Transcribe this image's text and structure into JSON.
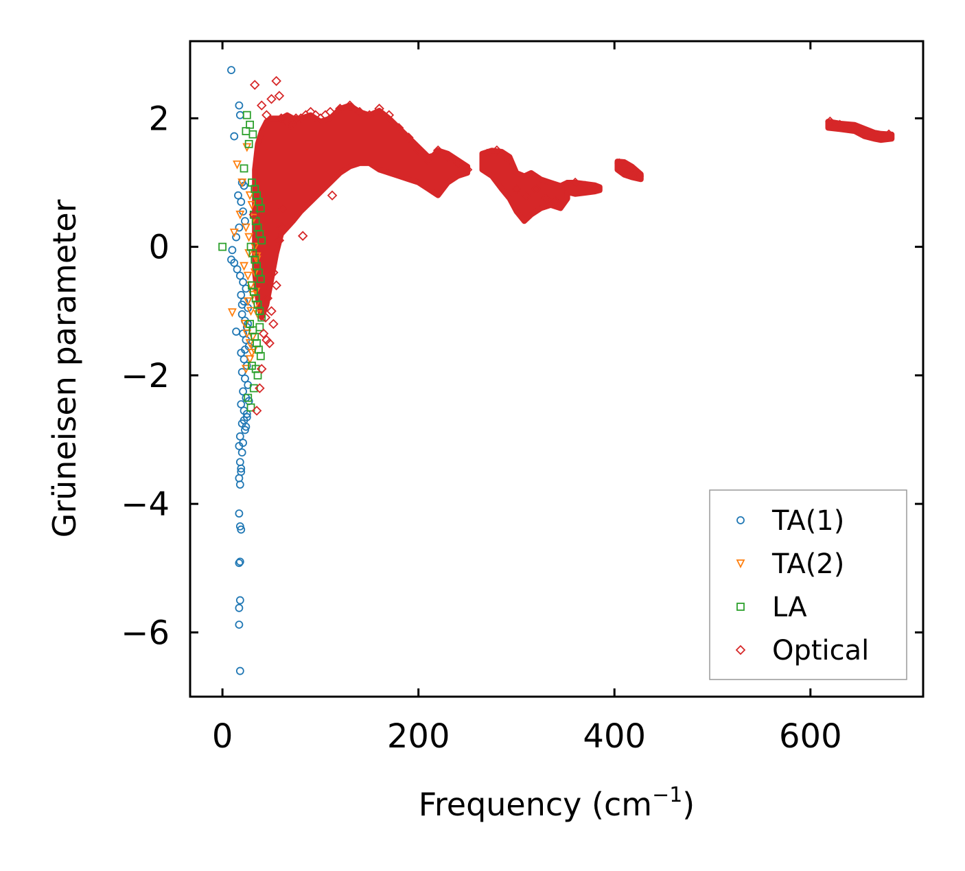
{
  "chart_data": {
    "type": "scatter",
    "title": "",
    "xlabel": "Frequency (cm",
    "xlabel_sup": "−1",
    "xlabel_end": ")",
    "ylabel": "Grüneisen parameter",
    "xlim": [
      -33,
      715
    ],
    "ylim": [
      -7.0,
      3.2
    ],
    "xticks": [
      0,
      200,
      400,
      600
    ],
    "xtick_labels": [
      "0",
      "200",
      "400",
      "600"
    ],
    "yticks": [
      2,
      0,
      -2,
      -4,
      -6
    ],
    "ytick_labels": [
      "2",
      "0",
      "−2",
      "−4",
      "−6"
    ],
    "grid": false,
    "legend_position": "lower-right",
    "series": [
      {
        "name": "TA(1)",
        "color": "#1f77b4",
        "marker": "circle",
        "x": [
          9,
          17,
          12,
          18,
          20,
          22,
          16,
          19,
          21,
          23,
          17,
          14,
          10,
          9,
          12,
          15,
          18,
          21,
          24,
          19,
          22,
          26,
          20,
          23,
          25,
          21,
          24,
          27,
          19,
          22,
          25,
          20,
          23,
          26,
          21,
          24,
          19,
          22,
          25,
          20,
          23,
          18,
          21,
          24,
          17,
          20,
          18,
          19,
          17,
          18,
          19,
          17,
          18,
          19,
          18,
          17,
          18,
          17,
          17,
          18,
          22,
          25,
          27,
          23,
          26,
          20,
          14
        ],
        "y": [
          2.75,
          2.2,
          1.72,
          2.05,
          1.0,
          0.95,
          0.8,
          0.7,
          0.55,
          0.4,
          0.3,
          0.15,
          -0.05,
          -0.2,
          -0.25,
          -0.35,
          -0.45,
          -0.55,
          -0.65,
          -0.75,
          -0.85,
          -0.95,
          -1.05,
          -1.15,
          -1.25,
          -1.35,
          -1.45,
          -1.55,
          -1.65,
          -1.75,
          -1.85,
          -1.95,
          -2.05,
          -2.15,
          -2.25,
          -2.35,
          -2.45,
          -2.55,
          -2.65,
          -2.75,
          -2.85,
          -2.95,
          -3.05,
          -2.8,
          -3.1,
          -3.2,
          -3.35,
          -3.5,
          -3.6,
          -3.7,
          -3.45,
          -4.15,
          -4.35,
          -4.4,
          -4.9,
          -4.92,
          -5.5,
          -5.62,
          -5.88,
          -6.6,
          -2.7,
          -2.6,
          -2.4,
          -1.6,
          -1.2,
          -0.9,
          -1.32
        ]
      },
      {
        "name": "TA(2)",
        "color": "#ff7f0e",
        "marker": "triangle-down",
        "x": [
          25,
          15,
          20,
          12,
          18,
          28,
          30,
          32,
          24,
          27,
          33,
          35,
          22,
          26,
          29,
          31,
          34,
          36,
          23,
          25,
          28,
          30,
          33,
          35,
          26,
          29,
          31,
          34,
          28,
          32,
          10,
          24,
          27
        ],
        "y": [
          1.55,
          1.28,
          1.0,
          0.22,
          0.5,
          0.8,
          0.65,
          0.45,
          0.3,
          0.15,
          0.0,
          -0.15,
          -0.3,
          -0.45,
          -0.6,
          -0.75,
          -0.9,
          -1.05,
          -1.2,
          -1.35,
          -1.5,
          -1.65,
          -0.4,
          -0.2,
          -0.85,
          -1.0,
          -1.4,
          -0.7,
          -1.75,
          -1.6,
          -1.02,
          -1.9,
          -0.1
        ]
      },
      {
        "name": "LA",
        "color": "#2ca02c",
        "marker": "square",
        "x": [
          25,
          28,
          31,
          24,
          27,
          22,
          30,
          33,
          35,
          37,
          39,
          32,
          34,
          36,
          38,
          40,
          29,
          31,
          33,
          35,
          37,
          39,
          30,
          32,
          34,
          36,
          38,
          40,
          28,
          31,
          33,
          35,
          37,
          39,
          30,
          34,
          38,
          36,
          32,
          26,
          29,
          0
        ],
        "y": [
          2.05,
          1.9,
          1.75,
          1.8,
          1.6,
          1.22,
          1.0,
          0.9,
          0.8,
          0.7,
          0.6,
          0.5,
          0.4,
          0.3,
          0.2,
          0.1,
          0.0,
          -0.1,
          -0.2,
          -0.3,
          -0.4,
          -0.5,
          -0.6,
          -0.7,
          -0.8,
          -0.9,
          -1.0,
          -1.1,
          -1.2,
          -1.3,
          -1.4,
          -1.5,
          -1.6,
          -1.7,
          -1.85,
          -1.9,
          -1.25,
          -2.0,
          -2.2,
          -2.35,
          -2.5,
          0.0
        ]
      },
      {
        "name": "Optical",
        "color": "#d62728",
        "marker": "diamond",
        "x": [
          33,
          40,
          55,
          58,
          50,
          45,
          60,
          65,
          70,
          75,
          80,
          85,
          90,
          95,
          100,
          110,
          120,
          130,
          140,
          150,
          160,
          170,
          180,
          190,
          200,
          210,
          220,
          230,
          240,
          250,
          270,
          280,
          290,
          300,
          310,
          320,
          330,
          340,
          350,
          360,
          370,
          380,
          405,
          410,
          415,
          420,
          425,
          620,
          630,
          640,
          650,
          660,
          670,
          680,
          82,
          52,
          45,
          40,
          35,
          38,
          55,
          50,
          48,
          42,
          60,
          62,
          58,
          52,
          46,
          44,
          32,
          105,
          112
        ],
        "y": [
          2.52,
          2.2,
          2.58,
          2.35,
          2.3,
          2.05,
          2.0,
          1.95,
          1.9,
          2.0,
          2.0,
          2.05,
          2.1,
          2.05,
          2.0,
          2.1,
          2.15,
          2.2,
          2.1,
          2.05,
          2.15,
          2.05,
          1.85,
          1.7,
          1.5,
          1.35,
          1.5,
          1.4,
          1.3,
          1.2,
          1.45,
          1.5,
          1.4,
          0.9,
          0.8,
          0.9,
          0.75,
          0.7,
          0.95,
          1.0,
          0.95,
          0.9,
          1.3,
          1.25,
          1.2,
          1.15,
          1.1,
          1.95,
          1.9,
          1.85,
          1.8,
          1.75,
          1.7,
          1.75,
          0.17,
          -1.2,
          -1.45,
          -1.9,
          -2.55,
          -2.2,
          -0.6,
          -1.0,
          -1.5,
          -1.35,
          0.3,
          0.6,
          0.1,
          -0.4,
          -0.8,
          -1.1,
          0.5,
          2.05,
          0.8
        ]
      }
    ],
    "optical_band": {
      "x": [
        33,
        36,
        40,
        45,
        50,
        55,
        60,
        66,
        72,
        80,
        90,
        100,
        110,
        120,
        130,
        140,
        150,
        160,
        170,
        180,
        190,
        200,
        210,
        215,
        220,
        230,
        240,
        250
      ],
      "upper": [
        1.2,
        1.6,
        1.8,
        1.95,
        2.0,
        2.0,
        2.0,
        2.05,
        2.0,
        2.0,
        2.05,
        1.95,
        2.0,
        2.15,
        2.2,
        2.1,
        2.05,
        2.12,
        2.0,
        1.85,
        1.7,
        1.55,
        1.4,
        1.42,
        1.5,
        1.45,
        1.35,
        1.25
      ],
      "lower": [
        -0.4,
        -0.8,
        -1.1,
        -0.9,
        -0.5,
        -0.1,
        0.2,
        0.3,
        0.4,
        0.55,
        0.7,
        0.85,
        1.0,
        1.15,
        1.25,
        1.3,
        1.3,
        1.2,
        1.15,
        1.1,
        1.05,
        1.0,
        0.9,
        0.85,
        0.8,
        1.0,
        1.1,
        1.15
      ]
    },
    "optical_clusters": [
      {
        "x": [
          265,
          275,
          285,
          293,
          300,
          308,
          315,
          325,
          335,
          345,
          352
        ],
        "upper": [
          1.45,
          1.5,
          1.48,
          1.4,
          1.15,
          1.1,
          1.15,
          1.05,
          1.0,
          0.95,
          1.0
        ],
        "lower": [
          1.2,
          1.1,
          0.9,
          0.75,
          0.55,
          0.4,
          0.5,
          0.6,
          0.65,
          0.6,
          0.75
        ]
      },
      {
        "x": [
          352,
          360,
          370,
          380,
          385
        ],
        "upper": [
          1.0,
          1.0,
          0.98,
          0.96,
          0.93
        ],
        "lower": [
          0.85,
          0.82,
          0.84,
          0.86,
          0.88
        ]
      },
      {
        "x": [
          403,
          410,
          418,
          427
        ],
        "upper": [
          1.33,
          1.32,
          1.25,
          1.13
        ],
        "lower": [
          1.2,
          1.12,
          1.08,
          1.05
        ]
      },
      {
        "x": [
          618,
          630,
          645,
          655,
          665,
          672,
          683
        ],
        "upper": [
          1.95,
          1.92,
          1.9,
          1.84,
          1.78,
          1.76,
          1.75
        ],
        "lower": [
          1.85,
          1.83,
          1.8,
          1.72,
          1.68,
          1.66,
          1.68
        ]
      }
    ]
  }
}
